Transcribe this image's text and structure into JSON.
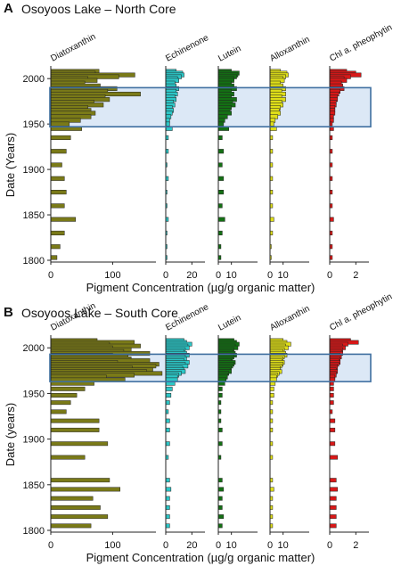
{
  "chart_data": [
    {
      "type": "bar",
      "panel_label": "A",
      "title": "Osoyoos Lake – North Core",
      "ylabel": "Date (Years)",
      "xlabel": "Pigment Concentration (µg/g organic matter)",
      "ylim": [
        1800,
        2010
      ],
      "yticks": [
        "2000",
        "1950",
        "1900",
        "1850",
        "1800"
      ],
      "highlight_range": [
        1947,
        1990
      ],
      "highlight_color": "#dce8f6",
      "highlight_border": "#3f6fa0",
      "years": [
        2008,
        2006,
        2004,
        2002,
        2000,
        1998,
        1995,
        1992,
        1989,
        1986,
        1983,
        1980,
        1977,
        1974,
        1971,
        1968,
        1965,
        1962,
        1958,
        1954,
        1950,
        1945,
        1935,
        1920,
        1905,
        1890,
        1875,
        1860,
        1845,
        1830,
        1815,
        1803
      ],
      "series": [
        {
          "name": "Diatoxanthin",
          "color": "#7a7a18",
          "xlim": [
            0,
            170
          ],
          "xticks": [
            "0",
            "100"
          ],
          "values": [
            78,
            72,
            136,
            110,
            60,
            75,
            55,
            80,
            107,
            92,
            145,
            88,
            95,
            70,
            85,
            60,
            65,
            72,
            65,
            48,
            30,
            50,
            32,
            25,
            18,
            22,
            25,
            22,
            40,
            22,
            15,
            10
          ]
        },
        {
          "name": "Echinenone",
          "color": "#2cc6c6",
          "xlim": [
            0,
            30
          ],
          "xticks": [
            "0",
            "20"
          ],
          "values": [
            8,
            13,
            14,
            12,
            9,
            10,
            7,
            8,
            10,
            8,
            9,
            7,
            8,
            6,
            7,
            5,
            6,
            5,
            4,
            3,
            3,
            5,
            2,
            2,
            1,
            2,
            1,
            1,
            2,
            1,
            1,
            1
          ]
        },
        {
          "name": "Lutein",
          "color": "#147014",
          "xlim": [
            0,
            30
          ],
          "xticks": [
            "0",
            "10"
          ],
          "values": [
            10,
            16,
            15,
            14,
            12,
            12,
            10,
            12,
            14,
            10,
            12,
            10,
            14,
            11,
            13,
            10,
            9,
            10,
            7,
            5,
            4,
            8,
            3,
            4,
            3,
            4,
            4,
            3,
            5,
            3,
            2,
            2
          ]
        },
        {
          "name": "Alloxanthin",
          "color": "#dede18",
          "xlim": [
            0,
            30
          ],
          "xticks": [
            "0",
            "10"
          ],
          "values": [
            8,
            13,
            14,
            12,
            10,
            11,
            8,
            10,
            12,
            9,
            12,
            9,
            12,
            9,
            10,
            8,
            7,
            8,
            6,
            4,
            3,
            5,
            2,
            2,
            2,
            2,
            2,
            2,
            3,
            2,
            1,
            1
          ]
        },
        {
          "name": "Chl a. pheophytin",
          "color": "#d81818",
          "xlim": [
            0,
            3
          ],
          "xticks": [
            "0",
            "2"
          ],
          "values": [
            1.3,
            2.0,
            2.4,
            1.6,
            1.1,
            1.3,
            0.9,
            1.0,
            1.1,
            0.8,
            0.7,
            0.6,
            0.6,
            0.5,
            0.5,
            0.4,
            0.4,
            0.4,
            0.3,
            0.3,
            0.2,
            0.3,
            0.2,
            0.2,
            0.2,
            0.2,
            0.2,
            0.2,
            0.3,
            0.2,
            0.2,
            0.2
          ]
        }
      ]
    },
    {
      "type": "bar",
      "panel_label": "B",
      "title": "Osoyoos Lake – South Core",
      "ylabel": "Date (years)",
      "xlabel": "Pigment Concentration (µg/g organic matter)",
      "ylim": [
        1800,
        2010
      ],
      "yticks": [
        "2000",
        "1950",
        "1900",
        "1850",
        "1800"
      ],
      "highlight_range": [
        1963,
        1993
      ],
      "highlight_color": "#dce8f6",
      "highlight_border": "#3f6fa0",
      "years": [
        2008,
        2006,
        2004,
        2002,
        2000,
        1998,
        1996,
        1994,
        1992,
        1990,
        1988,
        1986,
        1984,
        1982,
        1980,
        1978,
        1976,
        1974,
        1972,
        1970,
        1968,
        1965,
        1961,
        1955,
        1948,
        1940,
        1930,
        1920,
        1910,
        1895,
        1880,
        1855,
        1845,
        1835,
        1825,
        1815,
        1805
      ],
      "series": [
        {
          "name": "Diatoxanthin",
          "color": "#7a7a18",
          "xlim": [
            0,
            170
          ],
          "xticks": [
            "0",
            "100"
          ],
          "values": [
            75,
            135,
            95,
            145,
            100,
            130,
            118,
            160,
            100,
            125,
            130,
            160,
            108,
            175,
            170,
            132,
            165,
            155,
            180,
            135,
            90,
            120,
            70,
            55,
            42,
            32,
            25,
            78,
            78,
            92,
            55,
            95,
            112,
            68,
            80,
            92,
            65
          ]
        },
        {
          "name": "Echinenone",
          "color": "#2cc6c6",
          "xlim": [
            0,
            30
          ],
          "xticks": [
            "0",
            "20"
          ],
          "values": [
            14,
            16,
            20,
            17,
            18,
            15,
            14,
            16,
            18,
            15,
            16,
            14,
            18,
            15,
            17,
            13,
            14,
            15,
            12,
            10,
            9,
            9,
            7,
            5,
            4,
            3,
            2,
            3,
            3,
            3,
            2,
            3,
            4,
            3,
            3,
            3,
            3
          ]
        },
        {
          "name": "Lutein",
          "color": "#147014",
          "xlim": [
            0,
            30
          ],
          "xticks": [
            "0",
            "10"
          ],
          "values": [
            12,
            14,
            16,
            13,
            15,
            12,
            11,
            13,
            14,
            12,
            11,
            10,
            13,
            12,
            11,
            10,
            9,
            10,
            8,
            7,
            7,
            6,
            5,
            3,
            3,
            2,
            2,
            2,
            3,
            3,
            2,
            3,
            4,
            3,
            3,
            4,
            3
          ]
        },
        {
          "name": "Alloxanthin",
          "color": "#dede18",
          "xlim": [
            0,
            30
          ],
          "xticks": [
            "0",
            "10"
          ],
          "values": [
            10,
            13,
            16,
            12,
            14,
            11,
            10,
            12,
            13,
            11,
            10,
            9,
            11,
            10,
            9,
            8,
            8,
            9,
            7,
            6,
            5,
            5,
            4,
            3,
            3,
            2,
            2,
            2,
            2,
            2,
            2,
            2,
            3,
            2,
            2,
            2,
            2
          ]
        },
        {
          "name": "Chl a. pheophytin",
          "color": "#d81818",
          "xlim": [
            0,
            3
          ],
          "xticks": [
            "0",
            "2"
          ],
          "values": [
            1.6,
            2.2,
            1.4,
            1.0,
            1.2,
            1.0,
            0.9,
            1.0,
            0.8,
            0.9,
            0.8,
            0.7,
            0.8,
            0.7,
            0.6,
            0.6,
            0.5,
            0.6,
            0.5,
            0.5,
            0.4,
            0.4,
            0.3,
            0.3,
            0.3,
            0.3,
            0.2,
            0.4,
            0.4,
            0.4,
            0.6,
            0.5,
            0.6,
            0.5,
            0.5,
            0.5,
            0.5
          ]
        }
      ]
    }
  ]
}
